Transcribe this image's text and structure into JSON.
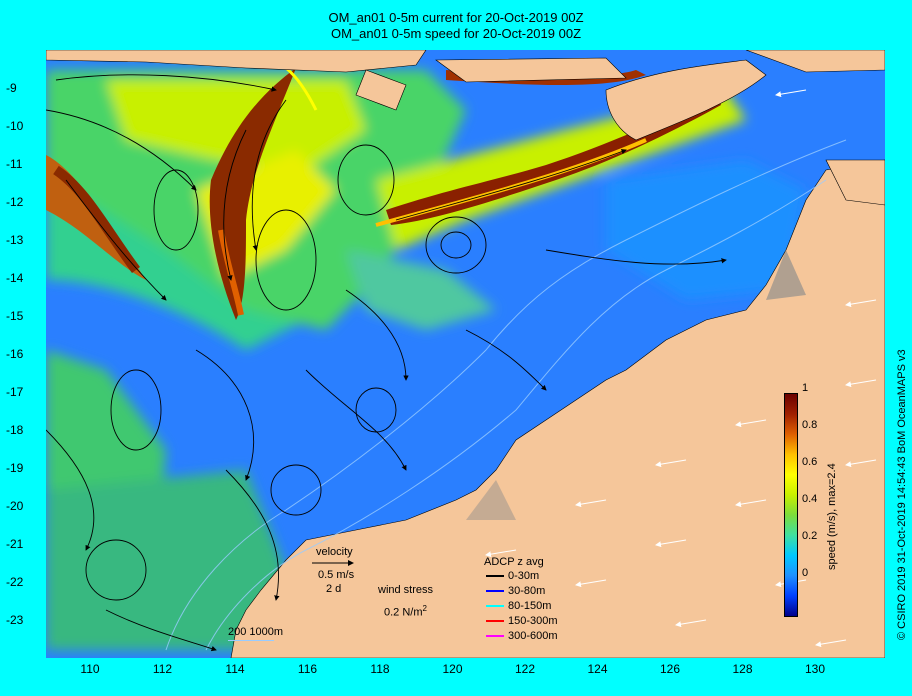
{
  "title_lines": [
    "OM_an01 0-5m current for 20-Oct-2019 00Z",
    "OM_an01 0-5m speed for 20-Oct-2019 00Z"
  ],
  "lat_labels": [
    "-9",
    "-10",
    "-11",
    "-12",
    "-13",
    "-14",
    "-15",
    "-16",
    "-17",
    "-18",
    "-19",
    "-20",
    "-21",
    "-22",
    "-23"
  ],
  "lon_labels": [
    "110",
    "112",
    "114",
    "116",
    "118",
    "120",
    "122",
    "124",
    "126",
    "128",
    "130"
  ],
  "colorbar": {
    "ticks": [
      "0",
      "0.2",
      "0.4",
      "0.6",
      "0.8",
      "1"
    ],
    "label": "speed (m/s), max=2.4",
    "colors": [
      "#00008b",
      "#0040ff",
      "#1e90ff",
      "#00c8ff",
      "#40e0a0",
      "#7cdc3c",
      "#c8f000",
      "#ffff00",
      "#ffc000",
      "#e06000",
      "#a02000",
      "#6a0000"
    ]
  },
  "legend": {
    "velocity_label": "velocity",
    "velocity_scale": "0.5 m/s",
    "velocity_time": "2 d",
    "wind_label": "wind stress",
    "wind_scale": "0.2 N/m",
    "wind_exp": "2",
    "bathy": "200  1000m",
    "adcp_title": "ADCP z avg",
    "adcp_items": [
      {
        "label": "0-30m",
        "color": "#000000"
      },
      {
        "label": "30-80m",
        "color": "#0000ff"
      },
      {
        "label": "80-150m",
        "color": "#00ffff"
      },
      {
        "label": "150-300m",
        "color": "#ff0000"
      },
      {
        "label": "300-600m",
        "color": "#ff00ff"
      }
    ]
  },
  "credit": "© CSIRO 2019   31-Oct-2019 14:54:43 BoM OceanMAPS v3",
  "colors": {
    "land": "#f5c69a",
    "frame": "#00ffff",
    "shelf": "#b0a090"
  }
}
